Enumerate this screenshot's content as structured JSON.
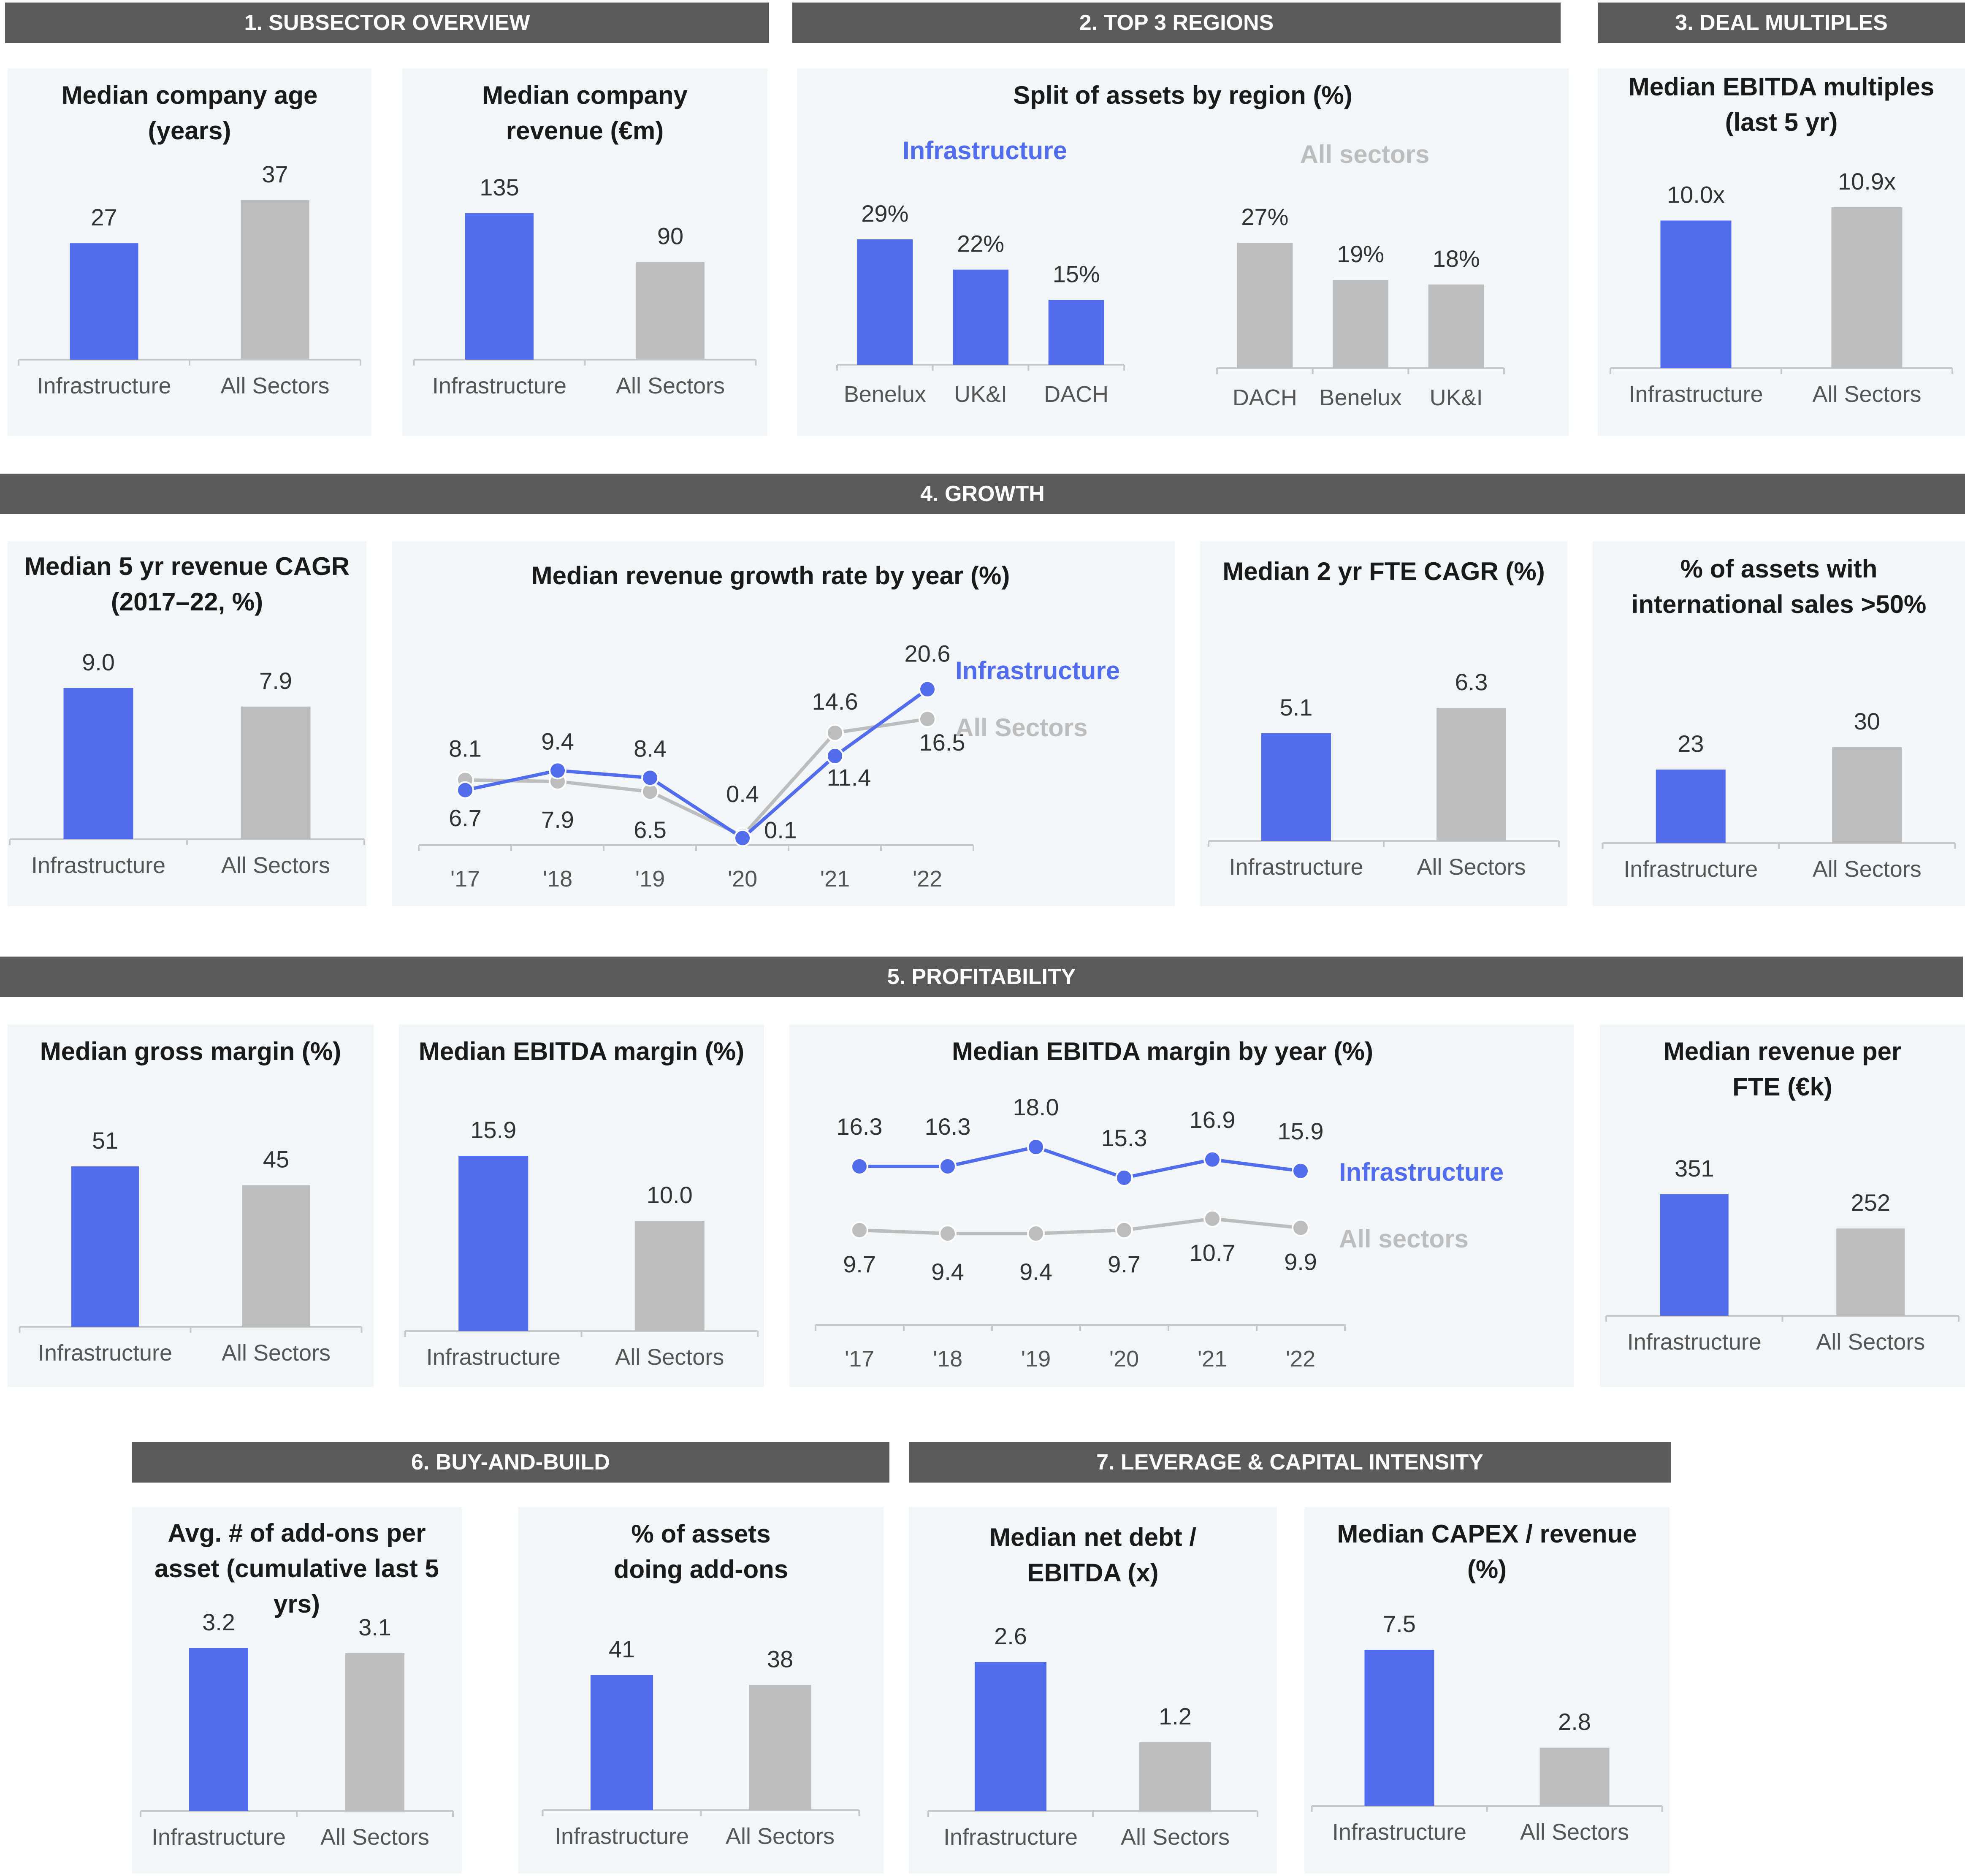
{
  "colors": {
    "infra": "#516cec",
    "all": "#bdbdbd",
    "banner": "#5a5a5a",
    "panel": "#f2f6f8"
  },
  "banners": {
    "b1": "1. SUBSECTOR OVERVIEW",
    "b2": "2. TOP 3 REGIONS",
    "b3": "3. DEAL MULTIPLES",
    "b4": "4. GROWTH",
    "b5": "5.  PROFITABILITY",
    "b6": "6. BUY-AND-BUILD",
    "b7": "7. LEVERAGE & CAPITAL INTENSITY"
  },
  "panels": {
    "age": {
      "title": "Median company age (years)"
    },
    "revenue": {
      "title": "Median company revenue (€m)"
    },
    "regions": {
      "title": "Split of assets by region (%)",
      "legend_infra": "Infrastructure",
      "legend_all": "All sectors"
    },
    "ebitda_mult": {
      "title": "Median EBITDA multiples (last 5 yr)"
    },
    "cagr5": {
      "title": "Median 5 yr revenue CAGR (2017–22, %)"
    },
    "growth_year": {
      "title": "Median revenue growth rate by year (%)",
      "legend_infra": "Infrastructure",
      "legend_all": "All Sectors"
    },
    "fte_cagr": {
      "title": "Median 2 yr FTE CAGR (%)"
    },
    "intl": {
      "title": "% of assets with international sales >50%"
    },
    "gross": {
      "title": "Median gross margin (%)"
    },
    "ebitda_margin": {
      "title": "Median EBITDA margin (%)"
    },
    "ebitda_year": {
      "title": "Median EBITDA margin by year (%)",
      "legend_infra": "Infrastructure",
      "legend_all": "All sectors"
    },
    "rev_fte": {
      "title": "Median revenue per FTE (€k)"
    },
    "addons": {
      "title": "Avg. # of add-ons per asset (cumulative last 5 yrs)"
    },
    "pct_addons": {
      "title": "% of assets doing add-ons"
    },
    "netdebt": {
      "title": "Median net debt / EBITDA (x)"
    },
    "capex": {
      "title": "Median CAPEX / revenue (%)"
    }
  },
  "chart_data": [
    {
      "id": "age",
      "type": "bar",
      "title": "Median company age (years)",
      "categories": [
        "Infrastructure",
        "All Sectors"
      ],
      "values": [
        27,
        37
      ],
      "labels": [
        "27",
        "37"
      ]
    },
    {
      "id": "revenue",
      "type": "bar",
      "title": "Median company revenue (€m)",
      "categories": [
        "Infrastructure",
        "All Sectors"
      ],
      "values": [
        135,
        90
      ],
      "labels": [
        "135",
        "90"
      ]
    },
    {
      "id": "regions_infra",
      "type": "bar",
      "title": "Split of assets by region (%)",
      "series_name": "Infrastructure",
      "categories": [
        "Benelux",
        "UK&I",
        "DACH"
      ],
      "values": [
        29,
        22,
        15
      ],
      "labels": [
        "29%",
        "22%",
        "15%"
      ]
    },
    {
      "id": "regions_all",
      "type": "bar",
      "title": "Split of assets by region (%)",
      "series_name": "All sectors",
      "categories": [
        "DACH",
        "Benelux",
        "UK&I"
      ],
      "values": [
        27,
        19,
        18
      ],
      "labels": [
        "27%",
        "19%",
        "18%"
      ]
    },
    {
      "id": "ebitda_mult",
      "type": "bar",
      "title": "Median EBITDA multiples (last 5 yr)",
      "categories": [
        "Infrastructure",
        "All Sectors"
      ],
      "values": [
        10.0,
        10.9
      ],
      "labels": [
        "10.0x",
        "10.9x"
      ]
    },
    {
      "id": "cagr5",
      "type": "bar",
      "title": "Median 5 yr revenue CAGR (2017–22, %)",
      "categories": [
        "Infrastructure",
        "All Sectors"
      ],
      "values": [
        9.0,
        7.9
      ],
      "labels": [
        "9.0",
        "7.9"
      ]
    },
    {
      "id": "growth_year",
      "type": "line",
      "title": "Median revenue growth rate by year (%)",
      "categories": [
        "'17",
        "'18",
        "'19",
        "'20",
        "'21",
        "'22"
      ],
      "series": [
        {
          "name": "Infrastructure",
          "values": [
            6.7,
            9.4,
            8.4,
            0.1,
            11.4,
            20.6
          ],
          "labels": [
            "6.7",
            "9.4",
            "8.4",
            "0.1",
            "11.4",
            "20.6"
          ]
        },
        {
          "name": "All Sectors",
          "values": [
            8.1,
            7.9,
            6.5,
            0.4,
            14.6,
            16.5
          ],
          "labels": [
            "8.1",
            "7.9",
            "6.5",
            "0.4",
            "14.6",
            "16.5"
          ]
        }
      ]
    },
    {
      "id": "fte_cagr",
      "type": "bar",
      "title": "Median 2 yr FTE CAGR (%)",
      "categories": [
        "Infrastructure",
        "All Sectors"
      ],
      "values": [
        5.1,
        6.3
      ],
      "labels": [
        "5.1",
        "6.3"
      ]
    },
    {
      "id": "intl",
      "type": "bar",
      "title": "% of assets with international sales >50%",
      "categories": [
        "Infrastructure",
        "All Sectors"
      ],
      "values": [
        23,
        30
      ],
      "labels": [
        "23",
        "30"
      ]
    },
    {
      "id": "gross",
      "type": "bar",
      "title": "Median gross margin (%)",
      "categories": [
        "Infrastructure",
        "All Sectors"
      ],
      "values": [
        51,
        45
      ],
      "labels": [
        "51",
        "45"
      ]
    },
    {
      "id": "ebitda_margin",
      "type": "bar",
      "title": "Median EBITDA margin (%)",
      "categories": [
        "Infrastructure",
        "All Sectors"
      ],
      "values": [
        15.9,
        10.0
      ],
      "labels": [
        "15.9",
        "10.0"
      ]
    },
    {
      "id": "ebitda_year",
      "type": "line",
      "title": "Median EBITDA margin by year (%)",
      "categories": [
        "'17",
        "'18",
        "'19",
        "'20",
        "'21",
        "'22"
      ],
      "series": [
        {
          "name": "Infrastructure",
          "values": [
            16.3,
            16.3,
            18.0,
            15.3,
            16.9,
            15.9
          ],
          "labels": [
            "16.3",
            "16.3",
            "18.0",
            "15.3",
            "16.9",
            "15.9"
          ]
        },
        {
          "name": "All sectors",
          "values": [
            9.7,
            9.4,
            9.4,
            9.7,
            10.7,
            9.9
          ],
          "labels": [
            "9.7",
            "9.4",
            "9.4",
            "9.7",
            "10.7",
            "9.9"
          ]
        }
      ]
    },
    {
      "id": "rev_fte",
      "type": "bar",
      "title": "Median revenue per FTE (€k)",
      "categories": [
        "Infrastructure",
        "All Sectors"
      ],
      "values": [
        351,
        252
      ],
      "labels": [
        "351",
        "252"
      ]
    },
    {
      "id": "addons",
      "type": "bar",
      "title": "Avg. # of add-ons per asset (cumulative last 5 yrs)",
      "categories": [
        "Infrastructure",
        "All Sectors"
      ],
      "values": [
        3.2,
        3.1
      ],
      "labels": [
        "3.2",
        "3.1"
      ]
    },
    {
      "id": "pct_addons",
      "type": "bar",
      "title": "% of assets doing add-ons",
      "categories": [
        "Infrastructure",
        "All Sectors"
      ],
      "values": [
        41,
        38
      ],
      "labels": [
        "41",
        "38"
      ]
    },
    {
      "id": "netdebt",
      "type": "bar",
      "title": "Median net debt / EBITDA (x)",
      "categories": [
        "Infrastructure",
        "All Sectors"
      ],
      "values": [
        2.6,
        1.2
      ],
      "labels": [
        "2.6",
        "1.2"
      ]
    },
    {
      "id": "capex",
      "type": "bar",
      "title": "Median CAPEX / revenue (%)",
      "categories": [
        "Infrastructure",
        "All Sectors"
      ],
      "values": [
        7.5,
        2.8
      ],
      "labels": [
        "7.5",
        "2.8"
      ]
    }
  ]
}
